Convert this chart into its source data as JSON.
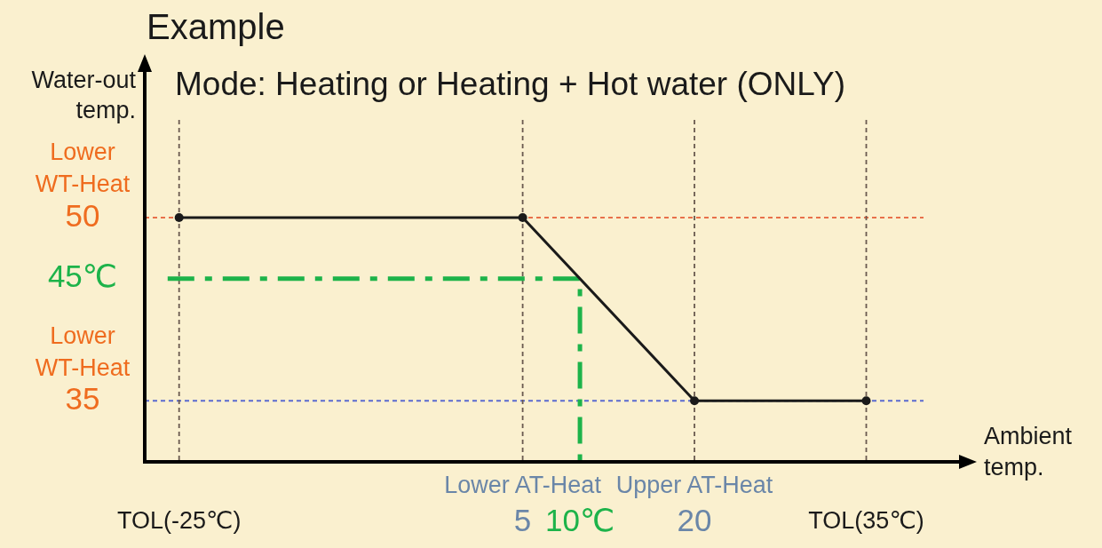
{
  "chart_data": {
    "type": "line",
    "title": "Example",
    "subtitle": "Mode: Heating or Heating + Hot water (ONLY)",
    "xlabel": "Ambient\ntemp.",
    "ylabel": "Water-out\ntemp.",
    "xlim": [
      -28,
      40
    ],
    "xticks": [
      {
        "value": -25,
        "label": "TOL(-25℃)"
      },
      5,
      {
        "value": 10,
        "label": "10℃"
      },
      20,
      {
        "value": 35,
        "label": "TOL(35℃)"
      }
    ],
    "ylim": [
      30,
      58
    ],
    "yticks": [
      35,
      {
        "value": 45,
        "label": "45℃"
      },
      50
    ],
    "series": [
      {
        "color": "#1a1a1a",
        "x": [
          -25,
          5,
          20,
          35
        ],
        "values": [
          50,
          50,
          35,
          35
        ],
        "marker": "circle",
        "line_style": "solid"
      },
      {
        "color": "#1db34a",
        "x": [
          -26,
          10,
          10
        ],
        "values": [
          45,
          45,
          30
        ],
        "marker": "none",
        "line_style": "dashed"
      }
    ],
    "ref_lines": [
      {
        "axis": "y",
        "value": 50,
        "label": "Lower\nWT-Heat",
        "color": "#e8704a",
        "line_style": "dotted"
      },
      {
        "axis": "y",
        "value": 35,
        "label": "Lower\nWT-Heat",
        "color": "#5a6ad0",
        "line_style": "dotted"
      },
      {
        "axis": "x",
        "value": -25,
        "color": "#6a5a50",
        "line_style": "dotted"
      },
      {
        "axis": "x",
        "value": 5,
        "label": "Lower AT-Heat",
        "color": "#6a5a50",
        "line_style": "dotted"
      },
      {
        "axis": "x",
        "value": 20,
        "label": "Upper AT-Heat",
        "color": "#6a5a50",
        "line_style": "dotted"
      },
      {
        "axis": "x",
        "value": 35,
        "color": "#6a5a50",
        "line_style": "dotted"
      }
    ]
  }
}
